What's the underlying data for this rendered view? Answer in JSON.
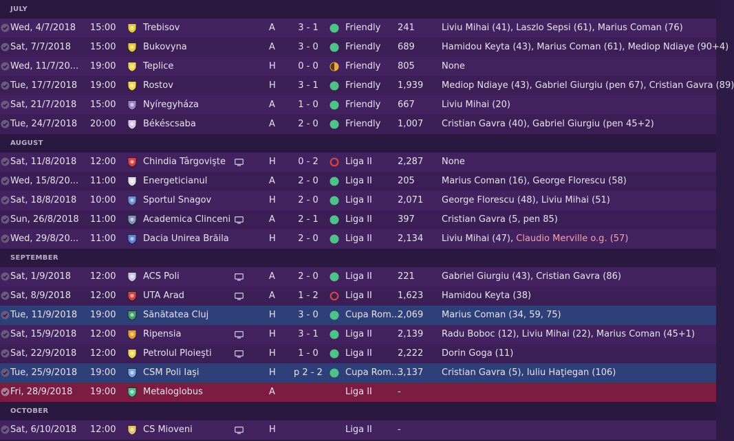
{
  "colors": {
    "win": "#4fc28a",
    "draw": "#f0a742",
    "loss": "#d6453f",
    "own_goal": "#f0a2b6"
  },
  "months": [
    {
      "label": "JULY",
      "fixtures": [
        {
          "date": "Wed, 4/7/2018",
          "time": "15:00",
          "badge": "club-crest-icon",
          "badge_color": "#e8c93a",
          "team": "Trebisov",
          "tv": false,
          "venue": "A",
          "score": "3 - 1",
          "result": "win",
          "competition": "Friendly",
          "attendance": "241",
          "scorers": "Liviu Mihai (41), Laszlo Sepsi (61), Marius Coman (76)",
          "style": "odd"
        },
        {
          "date": "Sat, 7/7/2018",
          "time": "15:00",
          "badge": "club-crest-icon",
          "badge_color": "#e8c93a",
          "team": "Bukovyna",
          "tv": false,
          "venue": "A",
          "score": "3 - 0",
          "result": "win",
          "competition": "Friendly",
          "attendance": "689",
          "scorers": "Hamidou Keyta (43), Marius Coman (61), Mediop Ndiaye (90+4)",
          "style": "even"
        },
        {
          "date": "Wed, 11/7/20...",
          "time": "19:00",
          "badge": "club-crest-icon",
          "badge_color": "#f2d64a",
          "team": "Teplice",
          "tv": false,
          "venue": "H",
          "score": "0 - 0",
          "result": "draw",
          "competition": "Friendly",
          "attendance": "805",
          "scorers": "None",
          "style": "odd"
        },
        {
          "date": "Tue, 17/7/2018",
          "time": "19:00",
          "badge": "club-crest-icon",
          "badge_color": "#f2d64a",
          "team": "Rostov",
          "tv": false,
          "venue": "H",
          "score": "3 - 1",
          "result": "win",
          "competition": "Friendly",
          "attendance": "1,939",
          "scorers": "Mediop Ndiaye (43), Gabriel Giurgiu (pen 67), Cristian Gavra (89)",
          "style": "even"
        },
        {
          "date": "Sat, 21/7/2018",
          "time": "15:00",
          "badge": "club-crest-icon",
          "badge_color": "#9a86c9",
          "team": "Nyíregyháza",
          "tv": false,
          "venue": "A",
          "score": "1 - 0",
          "result": "win",
          "competition": "Friendly",
          "attendance": "667",
          "scorers": "Liviu Mihai (20)",
          "style": "odd"
        },
        {
          "date": "Tue, 24/7/2018",
          "time": "20:00",
          "badge": "club-crest-icon",
          "badge_color": "#d9c4e6",
          "team": "Békéscsaba",
          "tv": false,
          "venue": "A",
          "score": "2 - 0",
          "result": "win",
          "competition": "Friendly",
          "attendance": "1,007",
          "scorers": "Cristian Gavra (40), Gabriel Giurgiu (pen 45+2)",
          "style": "even"
        }
      ]
    },
    {
      "label": "AUGUST",
      "fixtures": [
        {
          "date": "Sat, 11/8/2018",
          "time": "12:00",
          "badge": "club-crest-icon",
          "badge_color": "#d6453f",
          "team": "Chindia Târgovişte",
          "tv": true,
          "venue": "H",
          "score": "0 - 2",
          "result": "loss",
          "competition": "Liga II",
          "attendance": "2,287",
          "scorers": "None",
          "style": "odd"
        },
        {
          "date": "Wed, 15/8/20...",
          "time": "11:00",
          "badge": "club-crest-icon",
          "badge_color": "#e0e0e8",
          "team": "Energeticianul",
          "tv": false,
          "venue": "A",
          "score": "2 - 0",
          "result": "win",
          "competition": "Liga II",
          "attendance": "205",
          "scorers": "Marius Coman (16), George Florescu (58)",
          "style": "even"
        },
        {
          "date": "Sat, 18/8/2018",
          "time": "10:00",
          "badge": "club-crest-icon",
          "badge_color": "#6d8fd6",
          "team": "Sportul Snagov",
          "tv": false,
          "venue": "H",
          "score": "2 - 0",
          "result": "win",
          "competition": "Liga II",
          "attendance": "2,071",
          "scorers": "George Florescu (48), Liviu Mihai (51)",
          "style": "odd"
        },
        {
          "date": "Sun, 26/8/2018",
          "time": "11:00",
          "badge": "club-crest-icon",
          "badge_color": "#7d96b8",
          "team": "Academica Clinceni",
          "tv": true,
          "venue": "A",
          "score": "2 - 1",
          "result": "win",
          "competition": "Liga II",
          "attendance": "397",
          "scorers": "Cristian Gavra (5, pen 85)",
          "style": "even"
        },
        {
          "date": "Wed, 29/8/20...",
          "time": "11:00",
          "badge": "club-crest-icon",
          "badge_color": "#5f86d6",
          "team": "Dacia Unirea Brăila",
          "tv": false,
          "venue": "H",
          "score": "2 - 0",
          "result": "win",
          "competition": "Liga II",
          "attendance": "2,134",
          "scorers": "Liviu Mihai (47), ",
          "scorers_og": "Claudio Merville o.g. (57)",
          "style": "odd"
        }
      ]
    },
    {
      "label": "SEPTEMBER",
      "fixtures": [
        {
          "date": "Sat, 1/9/2018",
          "time": "12:00",
          "badge": "club-crest-icon",
          "badge_color": "#c9c6e6",
          "team": "ACS Poli",
          "tv": true,
          "venue": "A",
          "score": "2 - 0",
          "result": "win",
          "competition": "Liga II",
          "attendance": "221",
          "scorers": "Gabriel Giurgiu (43), Cristian Gavra (86)",
          "style": "odd"
        },
        {
          "date": "Sat, 8/9/2018",
          "time": "12:00",
          "badge": "club-crest-icon",
          "badge_color": "#d6453f",
          "team": "UTA Arad",
          "tv": true,
          "venue": "A",
          "score": "1 - 2",
          "result": "loss",
          "competition": "Liga II",
          "attendance": "1,623",
          "scorers": "Hamidou Keyta (38)",
          "style": "even"
        },
        {
          "date": "Tue, 11/9/2018",
          "time": "19:00",
          "badge": "club-crest-icon",
          "badge_color": "#3fa06a",
          "team": "Sănătatea Cluj",
          "tv": false,
          "venue": "H",
          "score": "3 - 0",
          "result": "win",
          "competition": "Cupa Rom...",
          "attendance": "2,069",
          "scorers": "Marius Coman (34, 59, 75)",
          "style": "cup"
        },
        {
          "date": "Sat, 15/9/2018",
          "time": "12:00",
          "badge": "club-crest-icon",
          "badge_color": "#e89a2c",
          "team": "Ripensia",
          "tv": true,
          "venue": "H",
          "score": "3 - 1",
          "result": "win",
          "competition": "Liga II",
          "attendance": "2,139",
          "scorers": "Radu Boboc (12), Liviu Mihai (22), Marius Coman (45+1)",
          "style": "odd"
        },
        {
          "date": "Sat, 22/9/2018",
          "time": "12:00",
          "badge": "club-crest-icon",
          "badge_color": "#f2d64a",
          "team": "Petrolul Ploieşti",
          "tv": true,
          "venue": "H",
          "score": "1 - 0",
          "result": "win",
          "competition": "Liga II",
          "attendance": "2,222",
          "scorers": "Dorin Goga (11)",
          "style": "even"
        },
        {
          "date": "Tue, 25/9/2018",
          "time": "19:00",
          "badge": "club-crest-icon",
          "badge_color": "#7fa6e0",
          "team": "CSM Poli Iaşi",
          "tv": false,
          "venue": "H",
          "score": "p 2 - 2",
          "result": "win",
          "competition": "Cupa Rom...",
          "attendance": "3,137",
          "scorers": "Cristian Gavra (5), Iuliu Haţiegan (106)",
          "style": "cup"
        },
        {
          "date": "Fri, 28/9/2018",
          "time": "19:00",
          "badge": "club-crest-icon",
          "badge_color": "#4fc28a",
          "team": "Metaloglobus",
          "tv": false,
          "venue": "A",
          "score": "",
          "result": "",
          "competition": "Liga II",
          "attendance": "-",
          "scorers": "",
          "style": "next"
        }
      ]
    },
    {
      "label": "OCTOBER",
      "fixtures": [
        {
          "date": "Sat, 6/10/2018",
          "time": "12:00",
          "badge": "club-crest-icon",
          "badge_color": "#e0c46a",
          "team": "CS Mioveni",
          "tv": true,
          "venue": "H",
          "score": "",
          "result": "",
          "competition": "Liga II",
          "attendance": "-",
          "scorers": "",
          "style": "odd"
        }
      ]
    }
  ]
}
